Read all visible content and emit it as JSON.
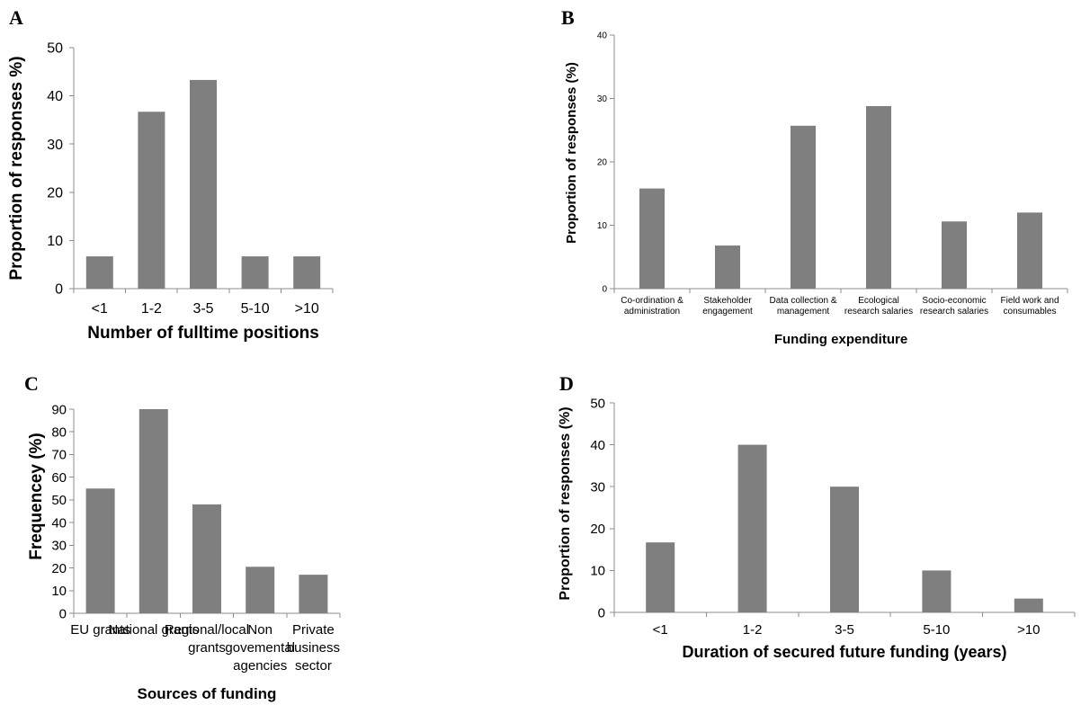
{
  "chart_data": [
    {
      "panel": "A",
      "type": "bar",
      "categories": [
        "<1",
        "1-2",
        "3-5",
        "5-10",
        ">10"
      ],
      "values": [
        6.7,
        36.7,
        43.3,
        6.7,
        6.7
      ],
      "xlabel": "Number of fulltime positions",
      "ylabel": "Proportion of responses %)",
      "ylim": [
        0,
        50
      ],
      "yticks": [
        0,
        10,
        20,
        30,
        40,
        50
      ]
    },
    {
      "panel": "B",
      "type": "bar",
      "categories": [
        [
          "Co-ordination &",
          "administration"
        ],
        [
          "Stakeholder",
          "engagement"
        ],
        [
          "Data collection &",
          "management"
        ],
        [
          "Ecological",
          "research salaries"
        ],
        [
          "Socio-economic",
          "research salaries"
        ],
        [
          "Field work and",
          "consumables"
        ]
      ],
      "values": [
        15.8,
        6.8,
        25.7,
        28.8,
        10.6,
        12.0
      ],
      "xlabel": "Funding expenditure",
      "ylabel": "Proportion of responses (%)",
      "ylim": [
        0,
        40
      ],
      "yticks": [
        0,
        10,
        20,
        30,
        40
      ]
    },
    {
      "panel": "C",
      "type": "bar",
      "categories": [
        [
          "EU grants"
        ],
        [
          "National grants"
        ],
        [
          "Regional/local",
          "grants"
        ],
        [
          "Non",
          "govemental",
          "agencies"
        ],
        [
          "Private",
          "business",
          "sector"
        ]
      ],
      "values": [
        55,
        90,
        48,
        20.5,
        17
      ],
      "xlabel": "Sources of funding",
      "ylabel": "Frequencey (%)",
      "ylim": [
        0,
        90
      ],
      "yticks": [
        0,
        10,
        20,
        30,
        40,
        50,
        60,
        70,
        80,
        90
      ]
    },
    {
      "panel": "D",
      "type": "bar",
      "categories": [
        "<1",
        "1-2",
        "3-5",
        "5-10",
        ">10"
      ],
      "values": [
        16.7,
        40,
        30,
        10,
        3.3
      ],
      "xlabel": "Duration of secured future funding (years)",
      "ylabel": "Proportion of responses (%)",
      "ylim": [
        0,
        50
      ],
      "yticks": [
        0,
        10,
        20,
        30,
        40,
        50
      ]
    }
  ]
}
